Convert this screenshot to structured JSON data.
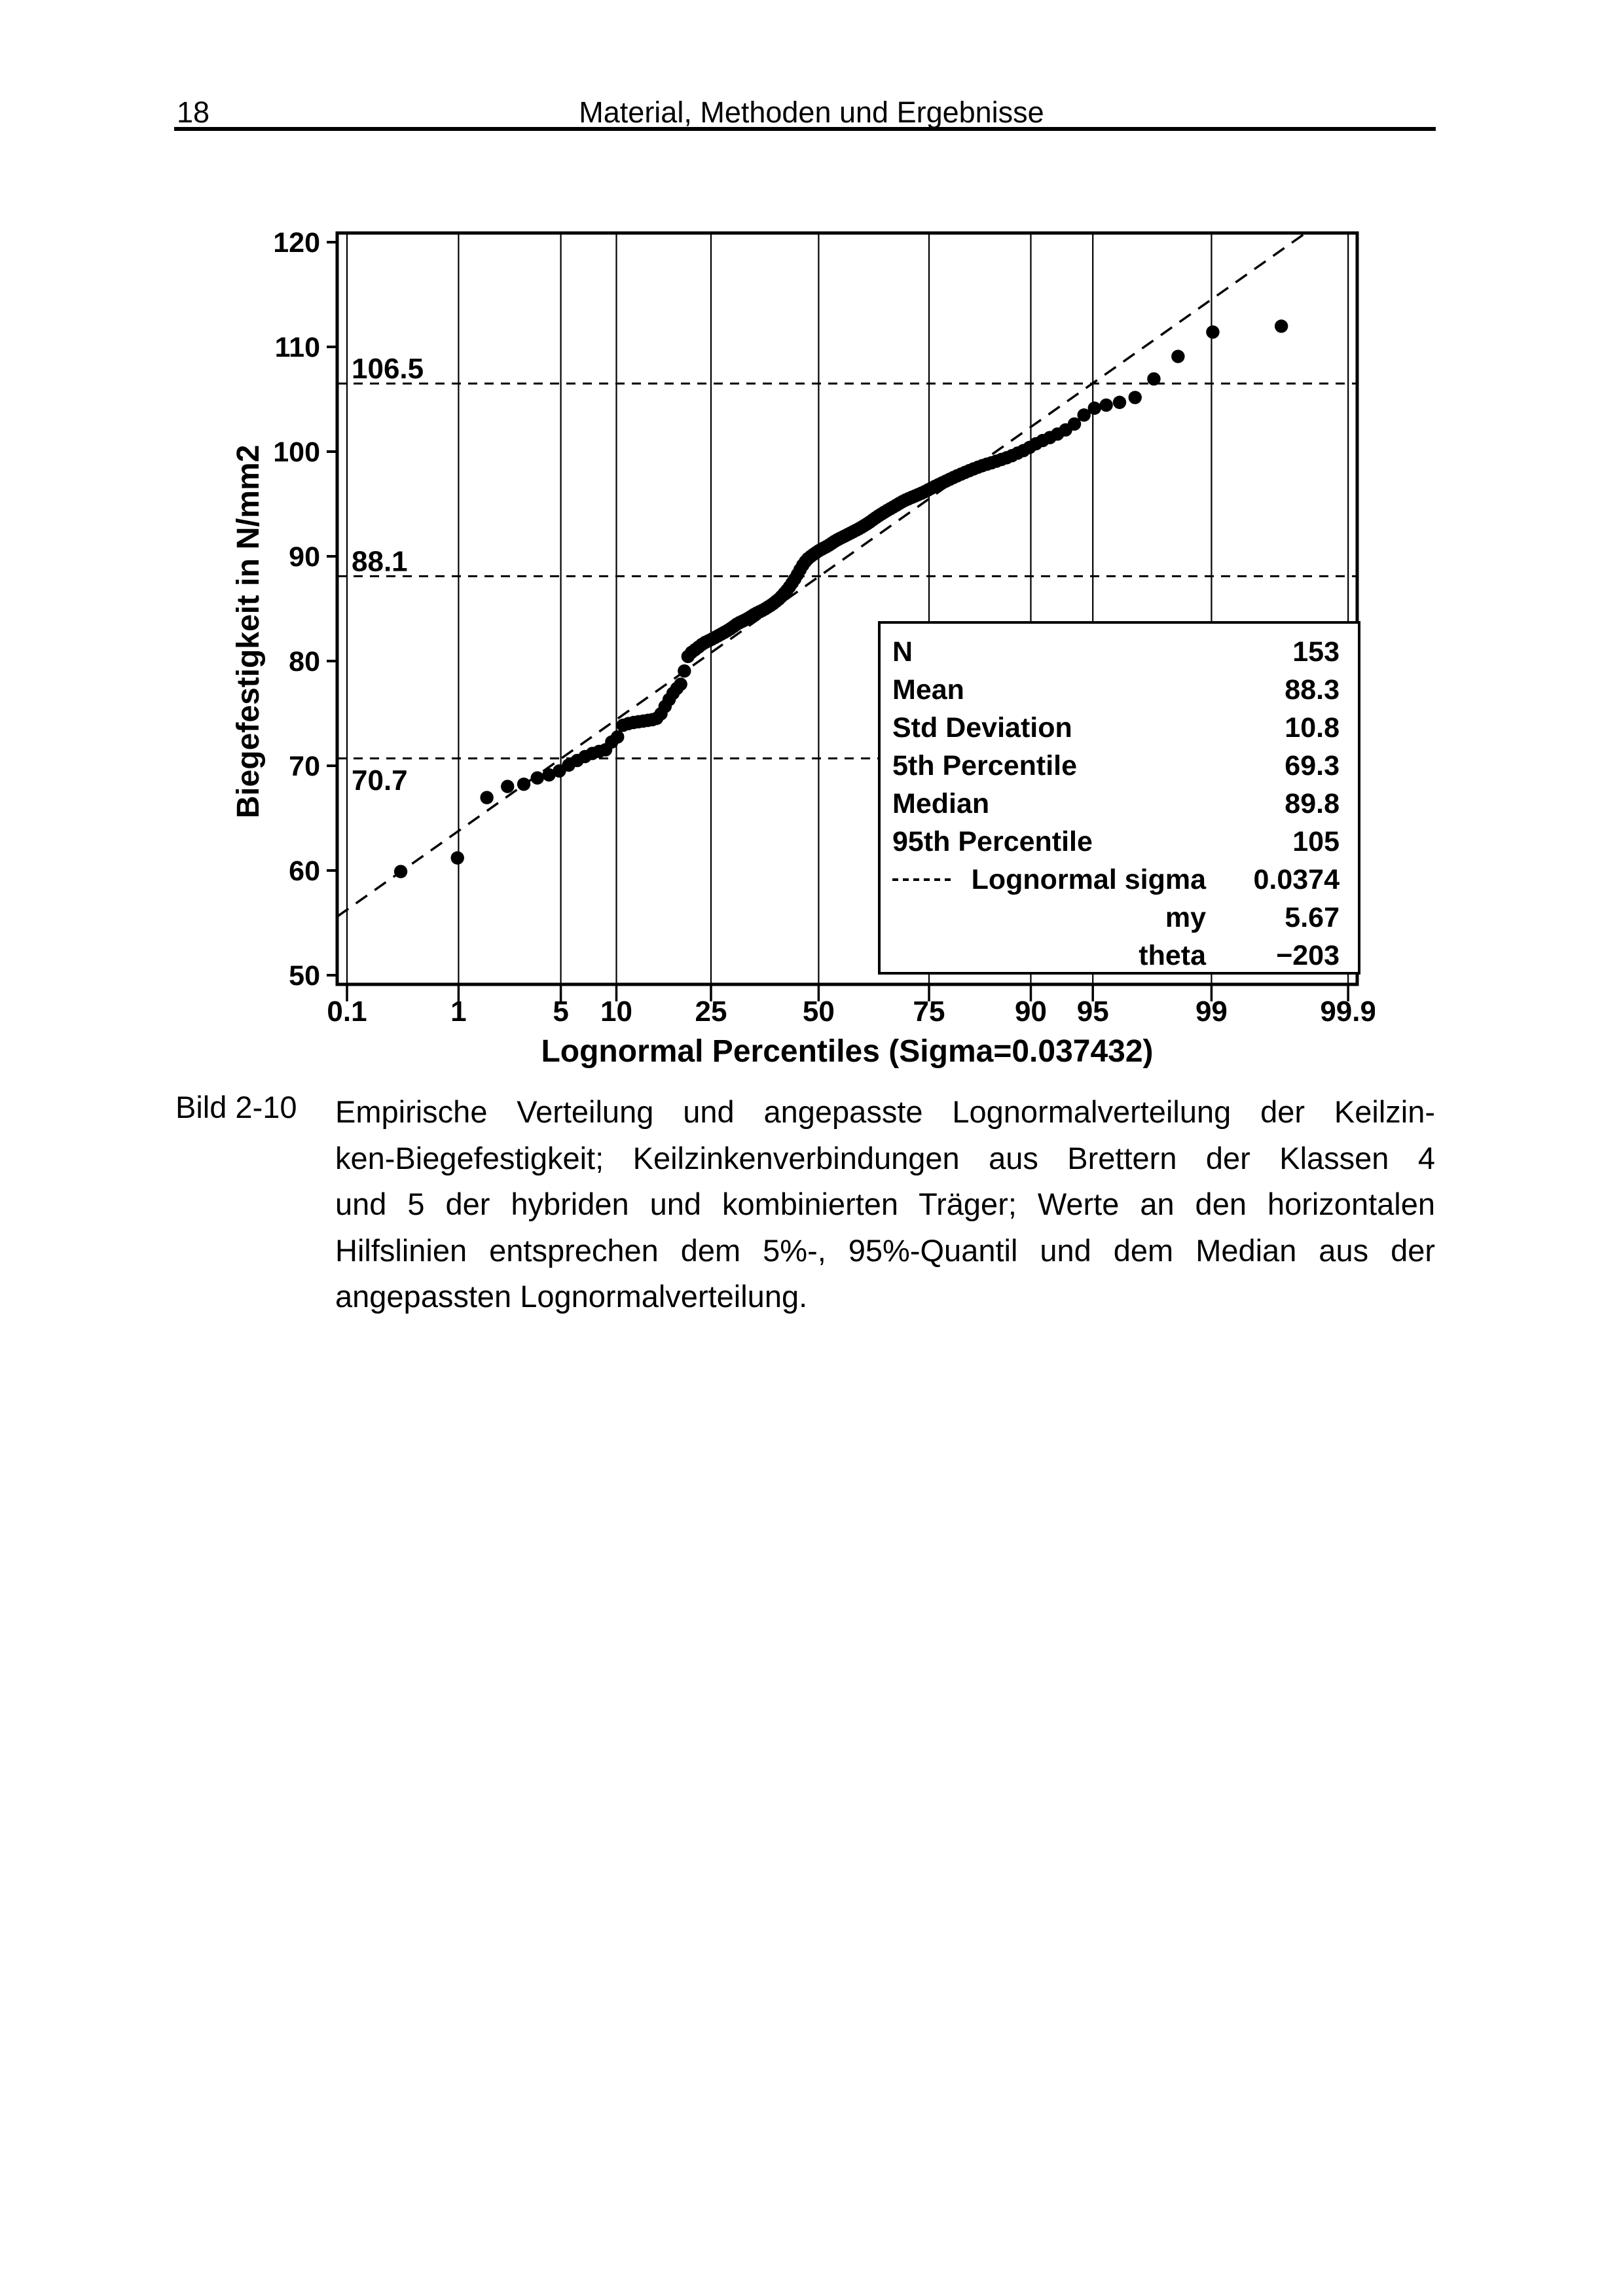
{
  "page": {
    "number": "18",
    "header_title": "Material, Methoden und Ergebnisse"
  },
  "figure": {
    "caption_label": "Bild 2-10",
    "caption_lines": [
      "Empirische Verteilung und angepasste Lognormalverteilung der Keilzin-",
      "ken-Biegefestigkeit; Keilzinkenverbindungen aus Brettern der Klassen 4",
      "und 5 der hybriden und kombinierten Träger; Werte an den horizontalen",
      "Hilfslinien entsprechen dem 5%-, 95%-Quantil und dem Median aus der",
      "angepassten Lognormalverteilung."
    ]
  },
  "chart_data": {
    "type": "scatter",
    "xlabel": "Lognormal Percentiles (Sigma=0.037432)",
    "ylabel": "Biegefestigkeit in N/mm2",
    "x_ticks": [
      {
        "p": 0.1,
        "label": "0.1"
      },
      {
        "p": 1,
        "label": "1"
      },
      {
        "p": 5,
        "label": "5"
      },
      {
        "p": 10,
        "label": "10"
      },
      {
        "p": 25,
        "label": "25"
      },
      {
        "p": 50,
        "label": "50"
      },
      {
        "p": 75,
        "label": "75"
      },
      {
        "p": 90,
        "label": "90"
      },
      {
        "p": 95,
        "label": "95"
      },
      {
        "p": 99,
        "label": "99"
      },
      {
        "p": 99.9,
        "label": "99.9"
      }
    ],
    "y_ticks": [
      50,
      60,
      70,
      80,
      90,
      100,
      110,
      120
    ],
    "ylim": [
      49.1,
      120.9
    ],
    "grid": "vertical",
    "n_points": 153,
    "guide_lines": [
      {
        "value": 106.5,
        "label": "106.5",
        "label_side": "above"
      },
      {
        "value": 88.1,
        "label": "88.1",
        "label_side": "above"
      },
      {
        "value": 70.7,
        "label": "70.7",
        "label_side": "below"
      }
    ],
    "fit_line": {
      "sigma": 0.037432,
      "my": 5.67,
      "theta": -203,
      "scale": 291.05
    },
    "quantile_points": [
      [
        0.33,
        59.9
      ],
      [
        0.98,
        61.2
      ],
      [
        1.6,
        66.9
      ],
      [
        2.2,
        68.0
      ],
      [
        2.9,
        68.2
      ],
      [
        3.5,
        68.8
      ],
      [
        4.2,
        69.1
      ],
      [
        4.9,
        69.5
      ],
      [
        5.6,
        70.1
      ],
      [
        6.2,
        70.5
      ],
      [
        6.9,
        70.9
      ],
      [
        7.8,
        71.3
      ],
      [
        8.8,
        71.5
      ],
      [
        9.5,
        72.3
      ],
      [
        10.1,
        72.7
      ],
      [
        10.8,
        73.9
      ],
      [
        11.8,
        74.1
      ],
      [
        12.7,
        74.2
      ],
      [
        13.7,
        74.3
      ],
      [
        14.7,
        74.4
      ],
      [
        15.7,
        74.6
      ],
      [
        16.3,
        75.3
      ],
      [
        17.0,
        76.0
      ],
      [
        17.6,
        76.6
      ],
      [
        18.3,
        77.2
      ],
      [
        19.0,
        77.6
      ],
      [
        19.6,
        78.0
      ],
      [
        20.3,
        80.2
      ],
      [
        20.9,
        80.7
      ],
      [
        22.2,
        81.2
      ],
      [
        23.5,
        81.7
      ],
      [
        24.8,
        82.0
      ],
      [
        26.8,
        82.5
      ],
      [
        28.8,
        83.0
      ],
      [
        30.7,
        83.6
      ],
      [
        32.7,
        84.0
      ],
      [
        34.6,
        84.5
      ],
      [
        36.6,
        84.9
      ],
      [
        38.6,
        85.4
      ],
      [
        40.5,
        86.0
      ],
      [
        42.5,
        86.9
      ],
      [
        44.4,
        88.0
      ],
      [
        45.8,
        89.0
      ],
      [
        47.1,
        89.7
      ],
      [
        48.4,
        90.1
      ],
      [
        50.3,
        90.6
      ],
      [
        52.3,
        91.0
      ],
      [
        54.2,
        91.5
      ],
      [
        56.2,
        91.9
      ],
      [
        58.2,
        92.3
      ],
      [
        60.1,
        92.7
      ],
      [
        62.1,
        93.2
      ],
      [
        64.1,
        93.8
      ],
      [
        66.0,
        94.3
      ],
      [
        68.0,
        94.8
      ],
      [
        69.9,
        95.3
      ],
      [
        71.9,
        95.7
      ],
      [
        73.9,
        96.1
      ],
      [
        75.8,
        96.6
      ],
      [
        77.8,
        97.1
      ],
      [
        79.7,
        97.6
      ],
      [
        81.7,
        98.1
      ],
      [
        83.7,
        98.6
      ],
      [
        85.6,
        99.0
      ],
      [
        87.6,
        99.5
      ],
      [
        89.5,
        100.2
      ],
      [
        90.8,
        100.9
      ],
      [
        92.2,
        101.5
      ],
      [
        93.5,
        102.3
      ],
      [
        94.1,
        103.0
      ],
      [
        94.8,
        104.0
      ],
      [
        95.4,
        104.3
      ],
      [
        96.4,
        104.7
      ],
      [
        97.1,
        105.2
      ],
      [
        97.7,
        106.9
      ],
      [
        98.4,
        109.2
      ],
      [
        99.0,
        111.4
      ],
      [
        99.7,
        112.0
      ]
    ],
    "legend": {
      "rows": [
        {
          "label": "N",
          "value": "153"
        },
        {
          "label": "Mean",
          "value": "88.3"
        },
        {
          "label": "Std Deviation",
          "value": "10.8"
        },
        {
          "label": "5th Percentile",
          "value": "69.3"
        },
        {
          "label": "Median",
          "value": "89.8"
        },
        {
          "label": "95th Percentile",
          "value": "105"
        },
        {
          "label": "Lognormal sigma",
          "value": "0.0374",
          "dash_sample": true,
          "align": "right"
        },
        {
          "label": "my",
          "value": "5.67",
          "align": "right"
        },
        {
          "label": "theta",
          "value": "−203",
          "align": "right"
        }
      ]
    }
  }
}
